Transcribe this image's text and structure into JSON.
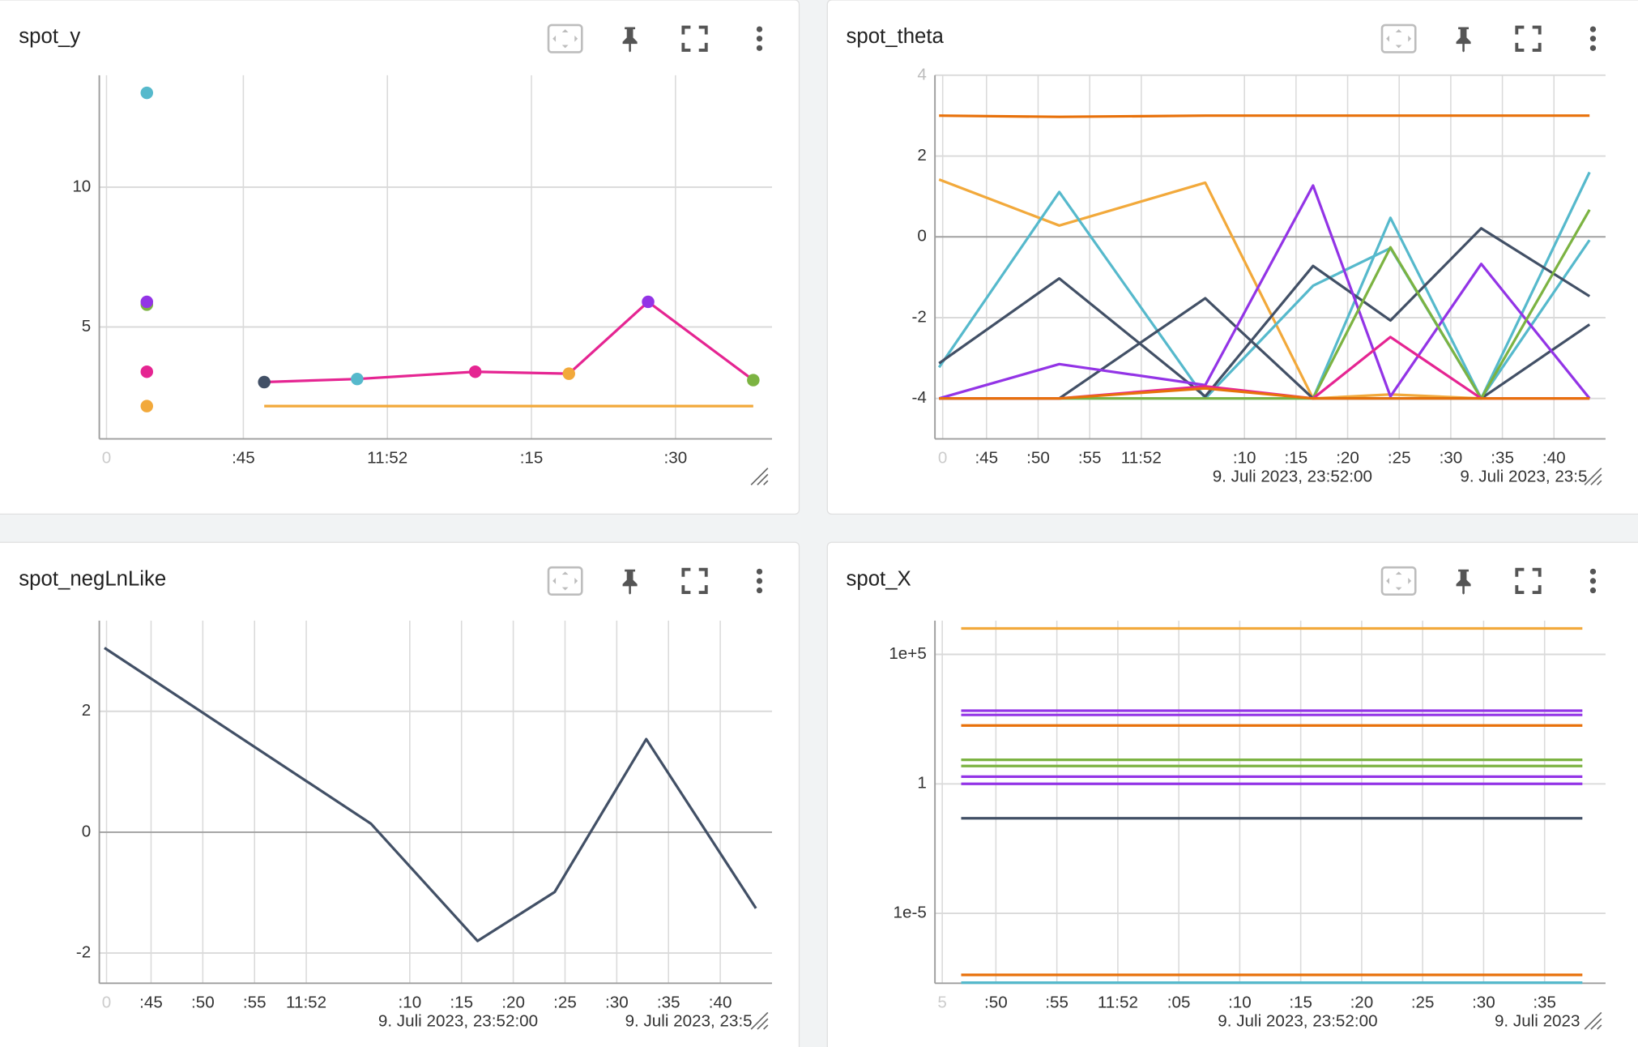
{
  "chart_data": [
    {
      "type": "line",
      "title": "spot_y",
      "grid": true,
      "xlim": [
        -1,
        3.67
      ],
      "xticks": [
        {
          "value": -0.95,
          "label": "0"
        },
        {
          "value": 0,
          "label": ":45"
        },
        {
          "value": 1,
          "label": "11:52"
        },
        {
          "value": 2,
          "label": ":15"
        },
        {
          "value": 3,
          "label": ":30"
        }
      ],
      "ylim": [
        1,
        14
      ],
      "yticks": [
        5,
        10
      ],
      "series": [
        {
          "color": "#56b9cc",
          "markers": true,
          "x": [
            -0.67
          ],
          "values": [
            13.37
          ]
        },
        {
          "color": "#7cb342",
          "markers": true,
          "x": [
            -0.67
          ],
          "values": [
            5.8
          ]
        },
        {
          "color": "#9334e6",
          "markers": true,
          "x": [
            -0.67
          ],
          "values": [
            5.9
          ]
        },
        {
          "color": "#e52592",
          "markers": true,
          "x": [
            -0.67
          ],
          "values": [
            3.4
          ]
        },
        {
          "color": "#f2a93b",
          "markers": true,
          "x": [
            -0.67
          ],
          "values": [
            2.17
          ]
        },
        {
          "color": "#f2a93b",
          "x": [
            0.145,
            3.54
          ],
          "values": [
            2.17,
            2.17
          ]
        },
        {
          "color": "#e52592",
          "markers": true,
          "point_colors": [
            "#425066",
            "#56b9cc",
            "#e52592",
            "#f2a93b",
            "#9334e6",
            "#7cb342"
          ],
          "x": [
            0.145,
            0.79,
            1.61,
            2.26,
            2.81,
            3.54
          ],
          "values": [
            3.03,
            3.14,
            3.4,
            3.33,
            5.9,
            3.1
          ]
        }
      ]
    },
    {
      "type": "line",
      "title": "spot_theta",
      "grid": true,
      "xlim": [
        0,
        13
      ],
      "xticks": [
        {
          "value": 0.15,
          "label": "0"
        },
        {
          "value": 1,
          "label": ":45"
        },
        {
          "value": 2,
          "label": ":50"
        },
        {
          "value": 3,
          "label": ":55"
        },
        {
          "value": 4,
          "label": "11:52"
        },
        {
          "value": 6,
          "label": ":10"
        },
        {
          "value": 7,
          "label": ":15"
        },
        {
          "value": 8,
          "label": ":20"
        },
        {
          "value": 9,
          "label": ":25"
        },
        {
          "value": 10,
          "label": ":30"
        },
        {
          "value": 11,
          "label": ":35"
        },
        {
          "value": 12,
          "label": ":40"
        }
      ],
      "secondary_xticks": [
        {
          "value": 5.38,
          "label": "9. Juli 2023, 23:52:00"
        },
        {
          "value": 10.18,
          "label": "9. Juli 2023, 23:5"
        }
      ],
      "ylim": [
        -5,
        4
      ],
      "yticks": [
        -4,
        -2,
        0,
        2,
        4
      ],
      "x": [
        0.08,
        2.41,
        5.24,
        7.33,
        8.83,
        10.59,
        12.69
      ],
      "series": [
        {
          "color": "#e8710a",
          "values": [
            3.0,
            2.97,
            3.0,
            3.0,
            3.0,
            3.0,
            3.0
          ]
        },
        {
          "color": "#f2a93b",
          "values": [
            1.42,
            0.28,
            1.34,
            -4,
            -3.9,
            -4,
            -4
          ]
        },
        {
          "color": "#56b9cc",
          "values": [
            -3.23,
            1.11,
            -4,
            -4,
            0.47,
            -4,
            1.6
          ]
        },
        {
          "color": "#56b9cc",
          "values": [
            -4,
            -4,
            -4,
            -1.21,
            -0.28,
            -4,
            -0.08
          ]
        },
        {
          "color": "#425066",
          "values": [
            -3.13,
            -1.03,
            -3.95,
            -0.72,
            -2.07,
            0.21,
            -1.47
          ]
        },
        {
          "color": "#425066",
          "values": [
            -4,
            -4,
            -1.52,
            -4,
            -4,
            -4,
            -2.17
          ]
        },
        {
          "color": "#9334e6",
          "values": [
            -4,
            -3.15,
            -3.67,
            1.27,
            -3.95,
            -0.67,
            -4
          ]
        },
        {
          "color": "#7cb342",
          "values": [
            -4,
            -4,
            -4,
            -4,
            -0.26,
            -4,
            0.67
          ]
        },
        {
          "color": "#e52592",
          "values": [
            -4,
            -4,
            -3.7,
            -4,
            -2.48,
            -4,
            -4
          ]
        },
        {
          "color": "#e8710a",
          "values": [
            -4,
            -4,
            -3.75,
            -4,
            -4,
            -4,
            -4
          ]
        }
      ]
    },
    {
      "type": "line",
      "title": "spot_negLnLike",
      "grid": true,
      "xlim": [
        0,
        13
      ],
      "xticks": [
        {
          "value": 0.14,
          "label": "0"
        },
        {
          "value": 1,
          "label": ":45"
        },
        {
          "value": 2,
          "label": ":50"
        },
        {
          "value": 3,
          "label": ":55"
        },
        {
          "value": 4,
          "label": "11:52"
        },
        {
          "value": 6,
          "label": ":10"
        },
        {
          "value": 7,
          "label": ":15"
        },
        {
          "value": 8,
          "label": ":20"
        },
        {
          "value": 9,
          "label": ":25"
        },
        {
          "value": 10,
          "label": ":30"
        },
        {
          "value": 11,
          "label": ":35"
        },
        {
          "value": 12,
          "label": ":40"
        }
      ],
      "secondary_xticks": [
        {
          "value": 5.39,
          "label": "9. Juli 2023, 23:52:00"
        },
        {
          "value": 10.16,
          "label": "9. Juli 2023, 23:5"
        }
      ],
      "ylim": [
        -2.5,
        3.5
      ],
      "yticks": [
        -2,
        0,
        2
      ],
      "x": [
        0.1,
        5.25,
        7.31,
        8.8,
        10.57,
        12.69
      ],
      "series": [
        {
          "color": "#425066",
          "values": [
            3.05,
            0.14,
            -1.8,
            -0.99,
            1.54,
            -1.26
          ]
        }
      ]
    },
    {
      "type": "line",
      "title": "spot_X",
      "grid": true,
      "log_y": true,
      "xlim": [
        0,
        11
      ],
      "xticks": [
        {
          "value": 0.12,
          "label": "5"
        },
        {
          "value": 1,
          "label": ":50"
        },
        {
          "value": 2,
          "label": ":55"
        },
        {
          "value": 3,
          "label": "11:52"
        },
        {
          "value": 4,
          "label": ":05"
        },
        {
          "value": 5,
          "label": ":10"
        },
        {
          "value": 6,
          "label": ":15"
        },
        {
          "value": 7,
          "label": ":20"
        },
        {
          "value": 8,
          "label": ":25"
        },
        {
          "value": 9,
          "label": ":30"
        },
        {
          "value": 10,
          "label": ":35"
        }
      ],
      "secondary_xticks": [
        {
          "value": 4.64,
          "label": "9. Juli 2023, 23:52:00"
        },
        {
          "value": 9.18,
          "label": "9. Juli 2023"
        }
      ],
      "ylim": [
        2e-08,
        2000000
      ],
      "yticks": [
        {
          "value": 1e-05,
          "label": "1e-5"
        },
        1,
        {
          "value": 100000,
          "label": "1e+5"
        }
      ],
      "x": [
        0.43,
        10.62
      ],
      "series": [
        {
          "color": "#f2a93b",
          "values": [
            1000000,
            1000000
          ]
        },
        {
          "color": "#9334e6",
          "values": [
            667,
            667
          ]
        },
        {
          "color": "#9334e6",
          "values": [
            460,
            460
          ]
        },
        {
          "color": "#e8710a",
          "values": [
            180,
            180
          ]
        },
        {
          "color": "#7cb342",
          "values": [
            8.5,
            8.5
          ]
        },
        {
          "color": "#7cb342",
          "values": [
            4.9,
            4.9
          ]
        },
        {
          "color": "#9334e6",
          "values": [
            1.9,
            1.9
          ]
        },
        {
          "color": "#9334e6",
          "values": [
            1,
            1
          ]
        },
        {
          "color": "#425066",
          "values": [
            0.047,
            0.047
          ]
        },
        {
          "color": "#e8710a",
          "values": [
            4.2e-08,
            4.2e-08
          ]
        },
        {
          "color": "#56b9cc",
          "values": [
            2.1e-08,
            2.1e-08
          ]
        }
      ]
    }
  ]
}
